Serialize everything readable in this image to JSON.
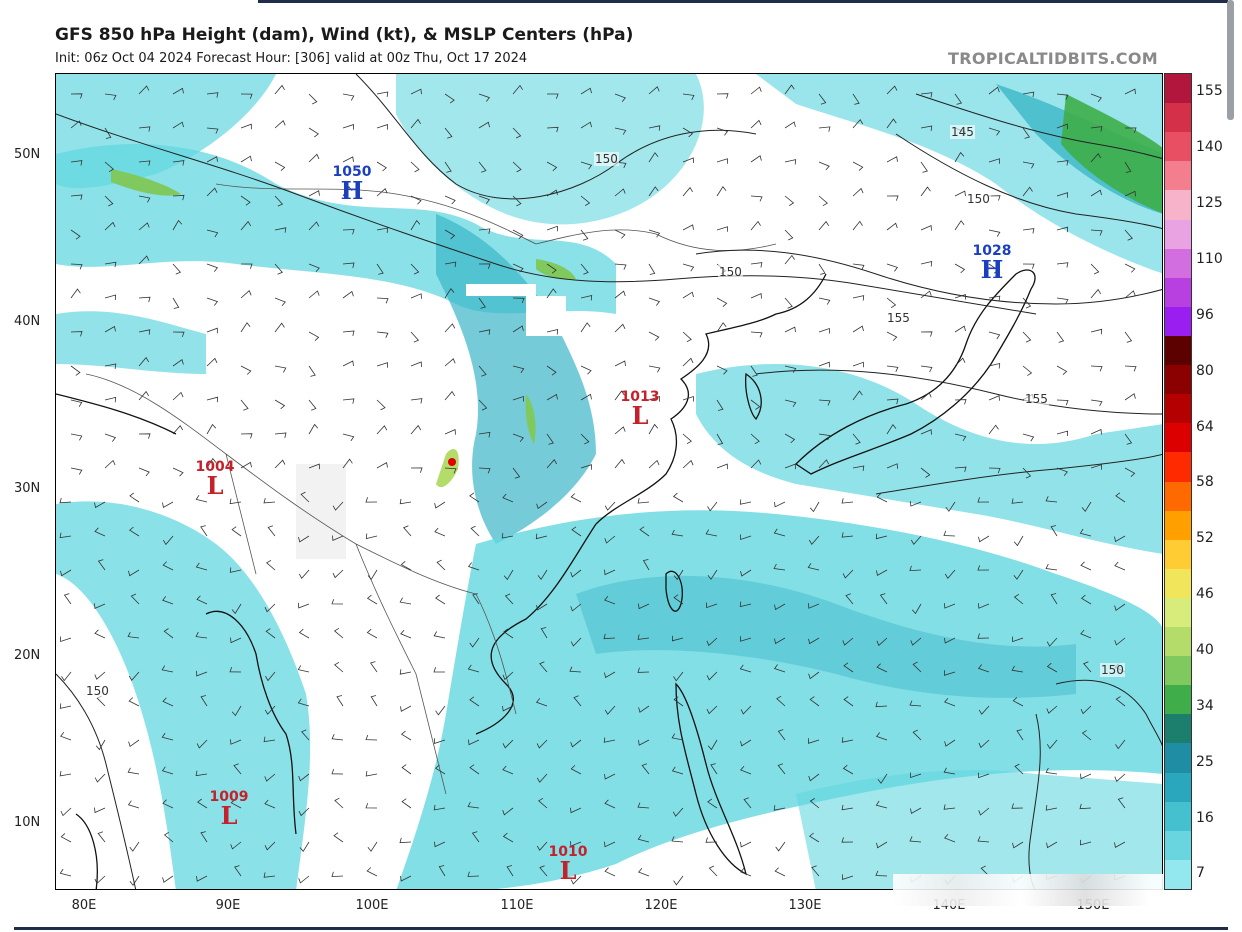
{
  "title": "GFS 850 hPa Height (dam), Wind (kt), & MSLP Centers (hPa)",
  "subtitle": "Init: 06z Oct 04 2024   Forecast Hour: [306]   valid at 00z Thu, Oct 17 2024",
  "credit": "TROPICALTIDBITS.COM",
  "latitude_labels": [
    "50N",
    "40N",
    "30N",
    "20N",
    "10N"
  ],
  "longitude_labels": [
    "80E",
    "90E",
    "100E",
    "110E",
    "120E",
    "130E",
    "140E",
    "150E"
  ],
  "colorbar": {
    "labels": [
      "155",
      "140",
      "125",
      "110",
      "96",
      "80",
      "64",
      "58",
      "52",
      "46",
      "40",
      "34",
      "25",
      "16",
      "7"
    ],
    "colors": [
      "#b3163c",
      "#d4304a",
      "#e94f63",
      "#f27e8e",
      "#f7b3c9",
      "#e9a3e3",
      "#d36ee0",
      "#b940e0",
      "#9b1ef0",
      "#5c0000",
      "#8b0000",
      "#b50000",
      "#dd0000",
      "#ff2a00",
      "#ff6a00",
      "#ff9f00",
      "#ffcc33",
      "#f1e65b",
      "#d7ec7a",
      "#b4dc6b",
      "#7fc95e",
      "#3fae4a",
      "#1c7f6e",
      "#1f8ea4",
      "#2aa7bd",
      "#45c0cf",
      "#68d5df",
      "#93e8ef"
    ]
  },
  "pressure_centers": [
    {
      "type": "H",
      "value": "1050"
    },
    {
      "type": "H",
      "value": "1028"
    },
    {
      "type": "L",
      "value": "1013"
    },
    {
      "type": "L",
      "value": "1004"
    },
    {
      "type": "L",
      "value": "1009"
    },
    {
      "type": "L",
      "value": "1010"
    }
  ],
  "contour_labels": [
    "150",
    "150",
    "145",
    "150",
    "155",
    "155",
    "150",
    "150"
  ],
  "colors": {
    "wind_fill": "#63d7e0",
    "wind_fill_strong": "#3bb7c7",
    "high": "#1a3fbf",
    "low": "#c4212b",
    "jet": "#3fae4a"
  }
}
